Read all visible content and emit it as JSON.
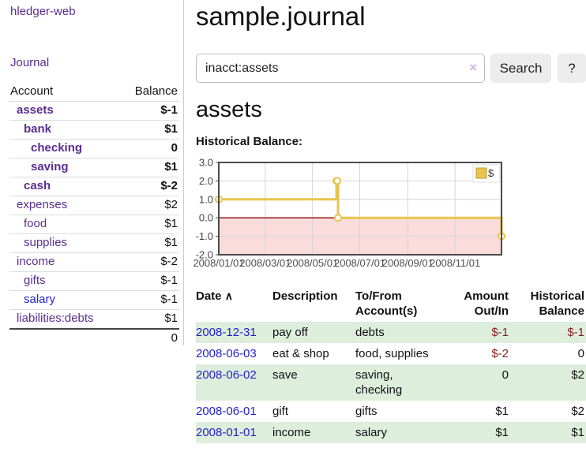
{
  "app": {
    "brand": "hledger-web",
    "nav": {
      "journal": "Journal"
    }
  },
  "sidebar": {
    "table_headers": {
      "account": "Account",
      "balance": "Balance"
    },
    "accounts": [
      {
        "name": "assets",
        "indent": 1,
        "balance": "$-1",
        "name_style": "bold",
        "balance_style": "neg-bold"
      },
      {
        "name": "bank",
        "indent": 2,
        "balance": "$1",
        "name_style": "bold",
        "balance_style": "bold"
      },
      {
        "name": "checking",
        "indent": 3,
        "balance": "0",
        "name_style": "bold",
        "balance_style": "bold"
      },
      {
        "name": "saving",
        "indent": 3,
        "balance": "$1",
        "name_style": "bold",
        "balance_style": "bold"
      },
      {
        "name": "cash",
        "indent": 2,
        "balance": "$-2",
        "name_style": "bold",
        "balance_style": "neg-bold"
      },
      {
        "name": "expenses",
        "indent": 1,
        "balance": "$2",
        "name_style": "normal",
        "balance_style": "normal"
      },
      {
        "name": "food",
        "indent": 2,
        "balance": "$1",
        "name_style": "normal",
        "balance_style": "normal"
      },
      {
        "name": "supplies",
        "indent": 2,
        "balance": "$1",
        "name_style": "normal",
        "balance_style": "normal"
      },
      {
        "name": "income",
        "indent": 1,
        "balance": "$-2",
        "name_style": "normal",
        "balance_style": "neg-light"
      },
      {
        "name": "gifts",
        "indent": 2,
        "balance": "$-1",
        "name_style": "normal",
        "balance_style": "neg-light"
      },
      {
        "name": "salary",
        "indent": 2,
        "balance": "$-1",
        "name_style": "blue",
        "balance_style": "neg-light"
      },
      {
        "name": "liabilities:debts",
        "indent": 1,
        "balance": "$1",
        "name_style": "normal",
        "balance_style": "normal"
      }
    ],
    "total": "0"
  },
  "main": {
    "title": "sample.journal",
    "search": {
      "value": "inacct:assets",
      "clear_icon": "×",
      "search_button": "Search",
      "help_button": "?"
    },
    "account_heading": "assets",
    "chart_title": "Historical Balance:"
  },
  "chart_data": {
    "type": "line",
    "step": "after",
    "title": "Historical Balance:",
    "ylim": [
      -2,
      3
    ],
    "ytick_values": [
      3,
      2,
      1,
      0,
      -1,
      -2
    ],
    "ytick_labels": [
      "3.0",
      "2.0",
      "1.0",
      "0.0",
      "-1.0",
      "-2.0"
    ],
    "xtick_labels": [
      "2008/01/01",
      "2008/03/01",
      "2008/05/01",
      "2008/07/01",
      "2008/09/01",
      "2008/11/01"
    ],
    "xtick_days": [
      0,
      60,
      121,
      182,
      244,
      305
    ],
    "x_range_days": [
      0,
      365
    ],
    "grid": true,
    "legend": {
      "label": "$",
      "position": "top-right"
    },
    "series": [
      {
        "name": "$",
        "color": "#e8c44e",
        "marker_fill": "#ffffff",
        "points": [
          {
            "date": "2008-01-01",
            "day": 0,
            "value": 1
          },
          {
            "date": "2008-06-01",
            "day": 152,
            "value": 2
          },
          {
            "date": "2008-06-02",
            "day": 153,
            "value": 2
          },
          {
            "date": "2008-06-03",
            "day": 154,
            "value": 0
          },
          {
            "date": "2008-12-31",
            "day": 365,
            "value": -1
          }
        ]
      }
    ],
    "negative_region_color": "#fbdcdc",
    "zero_line_color": "#8b0000"
  },
  "register": {
    "headers": {
      "date": "Date",
      "sort_indicator": "∧",
      "description": "Description",
      "accounts": "To/From Account(s)",
      "amount": "Amount Out/In",
      "balance": "Historical Balance"
    },
    "rows": [
      {
        "date": "2008-12-31",
        "description": "pay off",
        "accounts": "debts",
        "amount": "$-1",
        "amount_negative": true,
        "balance": "$-1",
        "balance_negative": true
      },
      {
        "date": "2008-06-03",
        "description": "eat & shop",
        "accounts": "food, supplies",
        "amount": "$-2",
        "amount_negative": true,
        "balance": "0",
        "balance_negative": false
      },
      {
        "date": "2008-06-02",
        "description": "save",
        "accounts": "saving, checking",
        "amount": "0",
        "amount_negative": false,
        "balance": "$2",
        "balance_negative": false
      },
      {
        "date": "2008-06-01",
        "description": "gift",
        "accounts": "gifts",
        "amount": "$1",
        "amount_negative": false,
        "balance": "$2",
        "balance_negative": false
      },
      {
        "date": "2008-01-01",
        "description": "income",
        "accounts": "salary",
        "amount": "$1",
        "amount_negative": false,
        "balance": "$1",
        "balance_negative": false
      }
    ]
  },
  "colors": {
    "accent_purple": "#5c2d91",
    "link_blue": "#2222cc",
    "negative_red": "#8b1d1d",
    "negative_light_red": "#c28482",
    "row_stripe_green": "#ddeedd",
    "chart_gold": "#e8c44e",
    "button_gray": "#ececec"
  }
}
